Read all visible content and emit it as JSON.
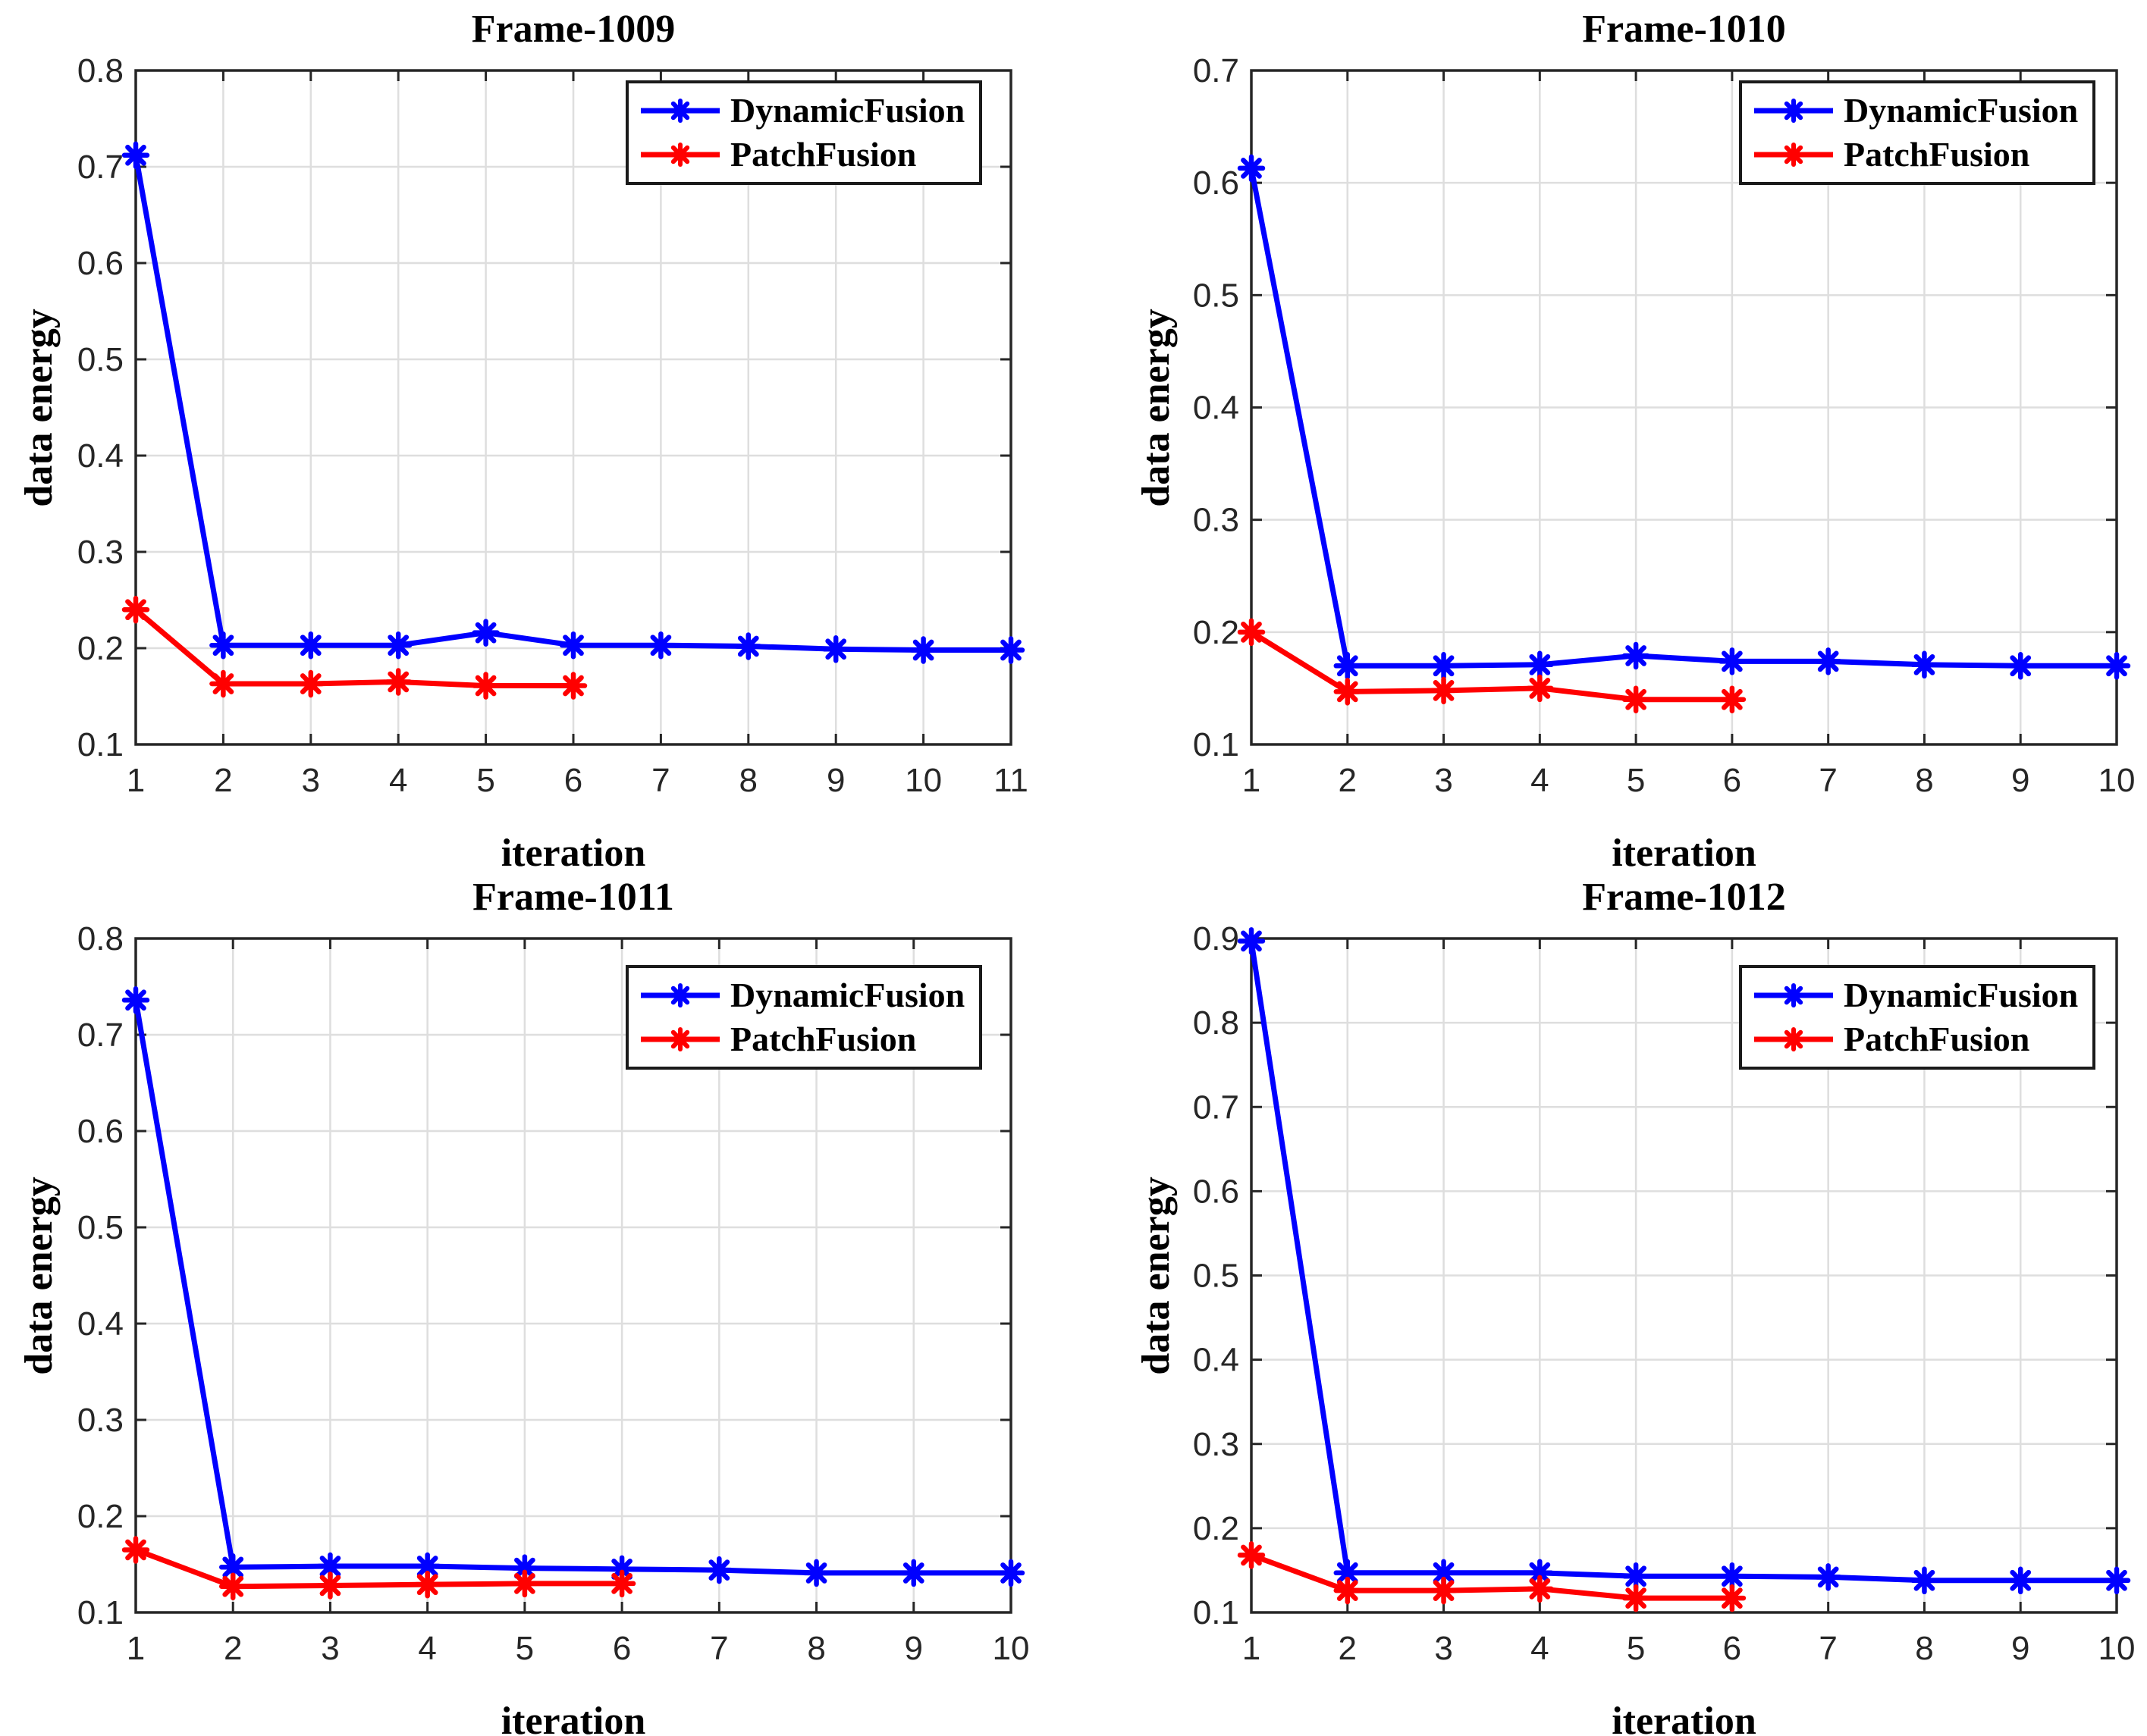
{
  "figure": {
    "background": "#ffffff",
    "axis_color": "#262626",
    "grid_color": "#dedede",
    "label_color": "#000000",
    "tick_font_size": 44
  },
  "chart_data": [
    {
      "type": "line",
      "title": "Frame-1009",
      "xlabel": "iteration",
      "ylabel": "data energy",
      "xlim": [
        1,
        11
      ],
      "ylim": [
        0.1,
        0.8
      ],
      "xticks": [
        1,
        2,
        3,
        4,
        5,
        6,
        7,
        8,
        9,
        10,
        11
      ],
      "yticks": [
        0.1,
        0.2,
        0.3,
        0.4,
        0.5,
        0.6,
        0.7,
        0.8
      ],
      "grid": true,
      "legend_position": "top-right",
      "series": [
        {
          "name": "DynamicFusion",
          "color": "#0000ff",
          "marker": "asterisk",
          "x": [
            1,
            2,
            3,
            4,
            5,
            6,
            7,
            8,
            9,
            10,
            11
          ],
          "y": [
            0.712,
            0.203,
            0.203,
            0.203,
            0.216,
            0.203,
            0.203,
            0.202,
            0.199,
            0.198,
            0.198
          ]
        },
        {
          "name": "PatchFusion",
          "color": "#ff0000",
          "marker": "asterisk",
          "x": [
            1,
            2,
            3,
            4,
            5,
            6
          ],
          "y": [
            0.24,
            0.163,
            0.163,
            0.165,
            0.161,
            0.161
          ]
        }
      ]
    },
    {
      "type": "line",
      "title": "Frame-1010",
      "xlabel": "iteration",
      "ylabel": "data energy",
      "xlim": [
        1,
        10
      ],
      "ylim": [
        0.1,
        0.7
      ],
      "xticks": [
        1,
        2,
        3,
        4,
        5,
        6,
        7,
        8,
        9,
        10
      ],
      "yticks": [
        0.1,
        0.2,
        0.3,
        0.4,
        0.5,
        0.6,
        0.7
      ],
      "grid": true,
      "legend_position": "top-right",
      "series": [
        {
          "name": "DynamicFusion",
          "color": "#0000ff",
          "marker": "asterisk",
          "x": [
            1,
            2,
            3,
            4,
            5,
            6,
            7,
            8,
            9,
            10
          ],
          "y": [
            0.613,
            0.17,
            0.17,
            0.171,
            0.179,
            0.174,
            0.174,
            0.171,
            0.17,
            0.17
          ]
        },
        {
          "name": "PatchFusion",
          "color": "#ff0000",
          "marker": "asterisk",
          "x": [
            1,
            2,
            3,
            4,
            5,
            6
          ],
          "y": [
            0.2,
            0.147,
            0.148,
            0.15,
            0.14,
            0.14
          ]
        }
      ]
    },
    {
      "type": "line",
      "title": "Frame-1011",
      "xlabel": "iteration",
      "ylabel": "data energy",
      "xlim": [
        1,
        10
      ],
      "ylim": [
        0.1,
        0.8
      ],
      "xticks": [
        1,
        2,
        3,
        4,
        5,
        6,
        7,
        8,
        9,
        10
      ],
      "yticks": [
        0.1,
        0.2,
        0.3,
        0.4,
        0.5,
        0.6,
        0.7,
        0.8
      ],
      "grid": true,
      "legend_position": "top-right",
      "series": [
        {
          "name": "DynamicFusion",
          "color": "#0000ff",
          "marker": "asterisk",
          "x": [
            1,
            2,
            3,
            4,
            5,
            6,
            7,
            8,
            9,
            10
          ],
          "y": [
            0.736,
            0.147,
            0.148,
            0.148,
            0.146,
            0.145,
            0.144,
            0.141,
            0.141,
            0.141
          ]
        },
        {
          "name": "PatchFusion",
          "color": "#ff0000",
          "marker": "asterisk",
          "x": [
            1,
            2,
            3,
            4,
            5,
            6
          ],
          "y": [
            0.165,
            0.127,
            0.128,
            0.129,
            0.13,
            0.13
          ]
        }
      ]
    },
    {
      "type": "line",
      "title": "Frame-1012",
      "xlabel": "iteration",
      "ylabel": "data energy",
      "xlim": [
        1,
        10
      ],
      "ylim": [
        0.1,
        0.9
      ],
      "xticks": [
        1,
        2,
        3,
        4,
        5,
        6,
        7,
        8,
        9,
        10
      ],
      "yticks": [
        0.1,
        0.2,
        0.3,
        0.4,
        0.5,
        0.6,
        0.7,
        0.8,
        0.9
      ],
      "grid": true,
      "legend_position": "top-right",
      "series": [
        {
          "name": "DynamicFusion",
          "color": "#0000ff",
          "marker": "asterisk",
          "x": [
            1,
            2,
            3,
            4,
            5,
            6,
            7,
            8,
            9,
            10
          ],
          "y": [
            0.897,
            0.147,
            0.147,
            0.147,
            0.143,
            0.143,
            0.142,
            0.138,
            0.138,
            0.138
          ]
        },
        {
          "name": "PatchFusion",
          "color": "#ff0000",
          "marker": "asterisk",
          "x": [
            1,
            2,
            3,
            4,
            5,
            6
          ],
          "y": [
            0.168,
            0.126,
            0.126,
            0.128,
            0.117,
            0.117
          ]
        }
      ]
    }
  ]
}
